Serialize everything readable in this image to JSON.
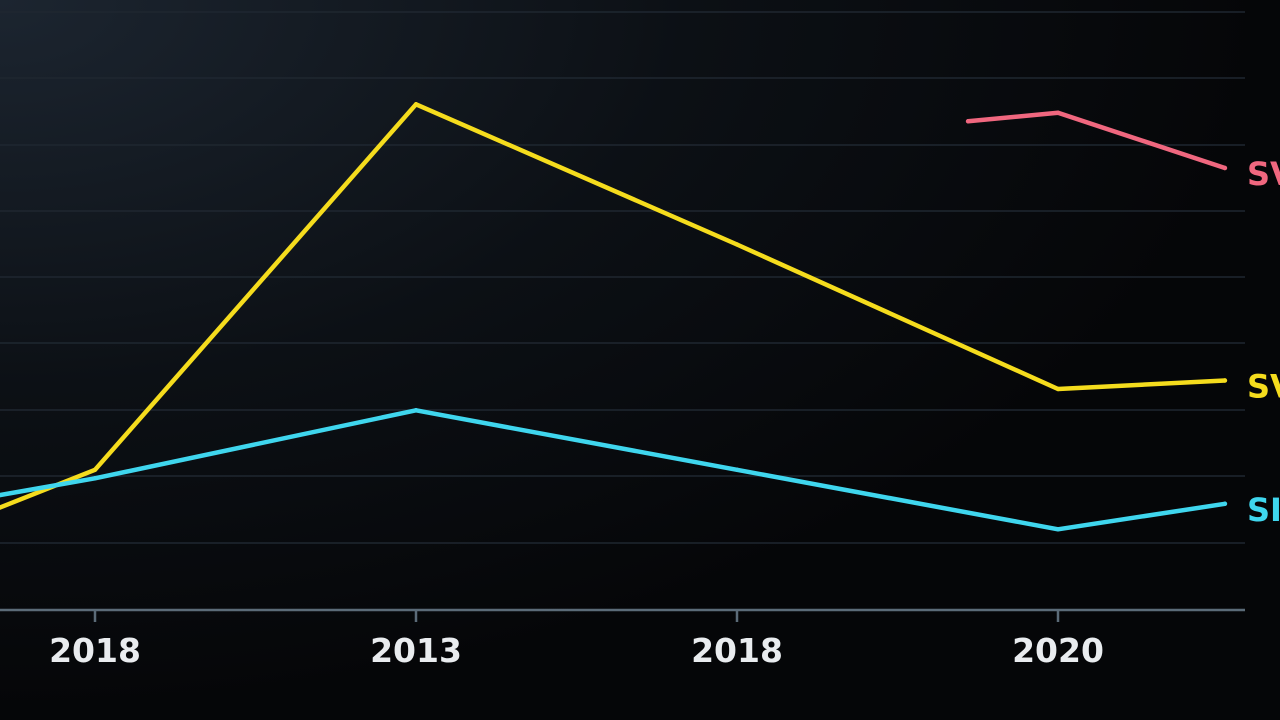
{
  "chart_data": {
    "type": "line",
    "x_ticks": [
      "2018",
      "2013",
      "2018",
      "2020"
    ],
    "grid": true,
    "colors": {
      "background": "#050608",
      "grid": "#1f2730",
      "axis": "#5b6b78",
      "tick_text": "#e9ecef"
    },
    "series": [
      {
        "name": "SV",
        "color": "#f0677f",
        "points": [
          [
            2.72,
            11.5
          ],
          [
            3.0,
            11.7
          ],
          [
            3.52,
            10.4
          ]
        ]
      },
      {
        "name": "SV",
        "color": "#f5dc1d",
        "points": [
          [
            -0.3,
            2.4
          ],
          [
            0.0,
            3.3
          ],
          [
            1.0,
            11.9
          ],
          [
            2.0,
            8.6
          ],
          [
            3.0,
            5.2
          ],
          [
            3.52,
            5.4
          ]
        ]
      },
      {
        "name": "SI",
        "color": "#3fd6ee",
        "points": [
          [
            -0.3,
            2.7
          ],
          [
            0.0,
            3.1
          ],
          [
            1.0,
            4.7
          ],
          [
            2.0,
            3.3
          ],
          [
            3.0,
            1.9
          ],
          [
            3.52,
            2.5
          ]
        ]
      }
    ]
  }
}
